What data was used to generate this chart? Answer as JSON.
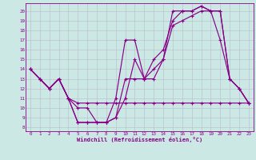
{
  "xlabel": "Windchill (Refroidissement éolien,°C)",
  "bg_color": "#cce8e4",
  "line_color": "#880088",
  "grid_color": "#bbbbcc",
  "xlim_min": -0.5,
  "xlim_max": 23.5,
  "ylim_min": 7.6,
  "ylim_max": 20.8,
  "yticks": [
    8,
    9,
    10,
    11,
    12,
    13,
    14,
    15,
    16,
    17,
    18,
    19,
    20
  ],
  "xticks": [
    0,
    1,
    2,
    3,
    4,
    5,
    6,
    7,
    8,
    9,
    10,
    11,
    12,
    13,
    14,
    15,
    16,
    17,
    18,
    19,
    20,
    21,
    22,
    23
  ],
  "curves": [
    [
      14,
      13,
      12,
      13,
      11,
      10,
      10,
      8.5,
      8.5,
      9,
      13,
      13,
      13,
      15,
      16,
      19,
      20,
      20,
      20.5,
      20,
      20,
      13,
      12,
      10.5
    ],
    [
      14,
      13,
      12,
      13,
      11,
      8.5,
      8.5,
      8.5,
      8.5,
      9,
      11,
      15,
      13,
      13,
      15,
      18.5,
      19,
      19.5,
      20,
      20,
      20,
      13,
      12,
      10.5
    ],
    [
      14,
      13,
      12,
      13,
      11,
      8.5,
      8.5,
      8.5,
      8.5,
      11,
      17,
      17,
      13,
      14,
      15,
      20,
      20,
      20,
      20.5,
      20,
      17,
      13,
      12,
      10.5
    ],
    [
      14,
      13,
      12,
      13,
      11,
      10.5,
      10.5,
      10.5,
      10.5,
      10.5,
      10.5,
      10.5,
      10.5,
      10.5,
      10.5,
      10.5,
      10.5,
      10.5,
      10.5,
      10.5,
      10.5,
      10.5,
      10.5,
      10.5
    ]
  ]
}
